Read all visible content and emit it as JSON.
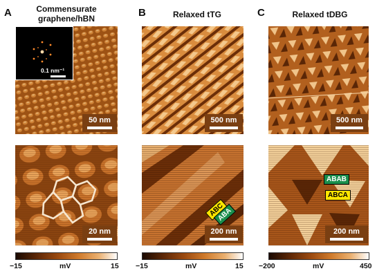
{
  "panels": [
    {
      "letter": "A",
      "title": "Commensurate graphene/hBN",
      "top_scale": "50 nm",
      "bottom_scale": "20 nm",
      "inset_label": "0.1 nm⁻¹",
      "colorbar": {
        "min": "−15",
        "unit": "mV",
        "max": "15"
      }
    },
    {
      "letter": "B",
      "title": "Relaxed tTG",
      "top_scale": "500 nm",
      "bottom_scale": "200 nm",
      "tags": [
        "ABC",
        "ABA"
      ],
      "colorbar": {
        "min": "−15",
        "unit": "mV",
        "max": "15"
      }
    },
    {
      "letter": "C",
      "title": "Relaxed tDBG",
      "top_scale": "500 nm",
      "bottom_scale": "200 nm",
      "tags": [
        "ABAB",
        "ABCA"
      ],
      "colorbar": {
        "min": "−200",
        "unit": "mV",
        "max": "450"
      }
    }
  ],
  "colors": {
    "scalebar_bg": "#7a3f12",
    "tag_green": "#1a8f4c",
    "tag_yellow": "#ffe600",
    "hex_outline": "#f6e6cf"
  }
}
